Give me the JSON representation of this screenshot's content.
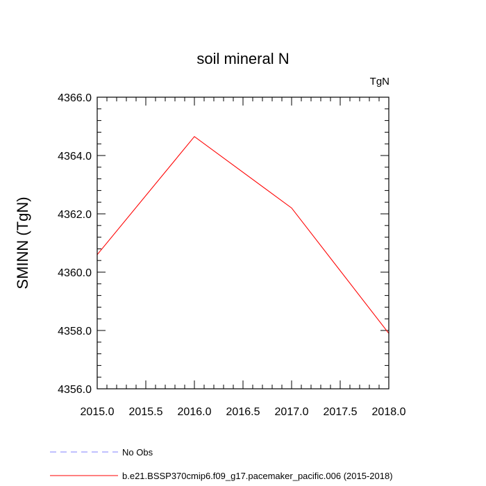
{
  "chart_data": {
    "type": "line",
    "title": "soil mineral N",
    "units_label": "TgN",
    "ylabel": "SMINN  (TgN)",
    "xlabel": "",
    "xlim": [
      2015.0,
      2018.0
    ],
    "ylim": [
      4356.0,
      4366.0
    ],
    "x_ticks": [
      "2015.0",
      "2015.5",
      "2016.0",
      "2016.5",
      "2017.0",
      "2017.5",
      "2018.0"
    ],
    "y_ticks": [
      "4356.0",
      "4358.0",
      "4360.0",
      "4362.0",
      "4364.0",
      "4366.0"
    ],
    "x_tick_values": [
      2015.0,
      2015.5,
      2016.0,
      2016.5,
      2017.0,
      2017.5,
      2018.0
    ],
    "y_tick_values": [
      4356.0,
      4358.0,
      4360.0,
      4362.0,
      4364.0,
      4366.0
    ],
    "x_minor_step": 0.1,
    "y_minor_step": 0.4,
    "grid": false,
    "legend_position": "bottom",
    "series": [
      {
        "name": "b.e21.BSSP370cmip6.f09_g17.pacemaker_pacific.006 (2015-2018)",
        "color": "#ff0000",
        "style": "solid",
        "x": [
          2015.0,
          2016.0,
          2017.0,
          2018.0
        ],
        "y": [
          4360.6,
          4364.65,
          4362.2,
          4357.9
        ]
      }
    ],
    "legend": [
      {
        "label": "No Obs",
        "color": "#8080ff",
        "style": "dashed"
      },
      {
        "label": "b.e21.BSSP370cmip6.f09_g17.pacemaker_pacific.006 (2015-2018)",
        "color": "#ff0000",
        "style": "solid"
      }
    ]
  }
}
